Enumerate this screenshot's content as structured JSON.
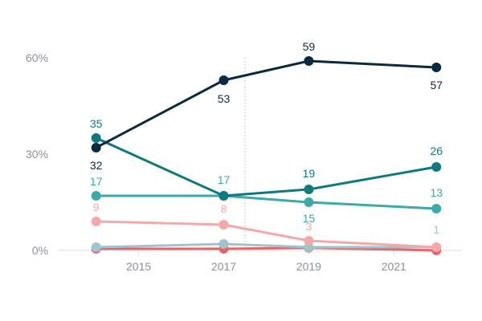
{
  "chart_data": {
    "type": "line",
    "x": [
      2014,
      2017,
      2019,
      2022
    ],
    "xticks": [
      "2015",
      "2017",
      "2019",
      "2021"
    ],
    "xtick_values": [
      2015,
      2017,
      2019,
      2021
    ],
    "xlim": [
      2013.1,
      2022.6
    ],
    "ylim": [
      0,
      60
    ],
    "yticks": [
      "0%",
      "30%",
      "60%"
    ],
    "ytick_values": [
      0,
      30,
      60
    ],
    "reference_line_x": 2017.5,
    "grid": false,
    "series": [
      {
        "color": "#0b2a3f",
        "values": [
          32,
          53,
          59,
          57
        ],
        "labels": [
          "32",
          "53",
          "59",
          "57"
        ]
      },
      {
        "color": "#0e7a80",
        "values": [
          35,
          17,
          19,
          26
        ],
        "labels": [
          "35",
          "",
          "19",
          "26"
        ]
      },
      {
        "color": "#3aaaaa",
        "values": [
          17,
          17,
          15,
          13
        ],
        "labels": [
          "17",
          "17",
          "15",
          "13"
        ]
      },
      {
        "color": "#f4a9a8",
        "values": [
          9,
          8,
          3,
          1
        ],
        "labels": [
          "9",
          "8",
          "3",
          ""
        ]
      },
      {
        "color": "#9ec5cc",
        "values": [
          1,
          2,
          1,
          1
        ],
        "labels": [
          "",
          "",
          "",
          "1"
        ]
      },
      {
        "color": "#e8636a",
        "values": [
          0.5,
          0.5,
          0.8,
          0
        ],
        "labels": [
          "",
          "",
          "",
          ""
        ]
      }
    ]
  }
}
